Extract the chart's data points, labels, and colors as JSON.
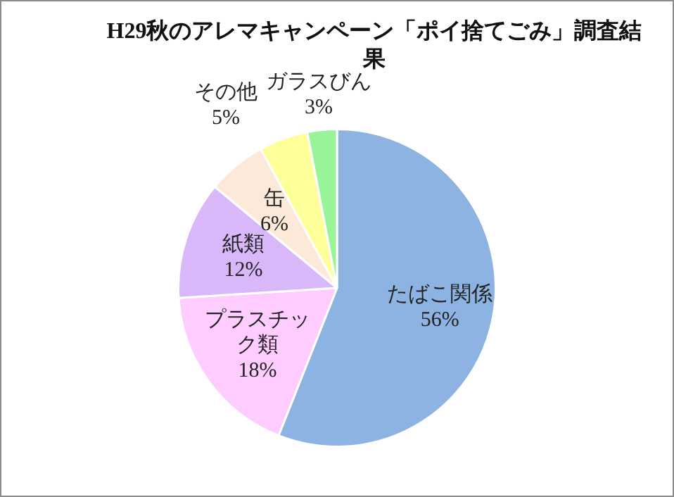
{
  "chart_data": {
    "type": "pie",
    "title": "H29秋のアレマキャンペーン「ポイ捨てごみ」調査結果",
    "categories": [
      "たばこ関係",
      "プラスチック類",
      "紙類",
      "缶",
      "その他",
      "ガラスびん"
    ],
    "values": [
      56,
      18,
      12,
      6,
      5,
      3
    ],
    "value_labels": [
      "56%",
      "18%",
      "12%",
      "6%",
      "5%",
      "3%"
    ],
    "colors": [
      "#8db3e2",
      "#ffccff",
      "#d9b8fa",
      "#fde9d9",
      "#ffff99",
      "#99f399"
    ],
    "legend": false
  }
}
